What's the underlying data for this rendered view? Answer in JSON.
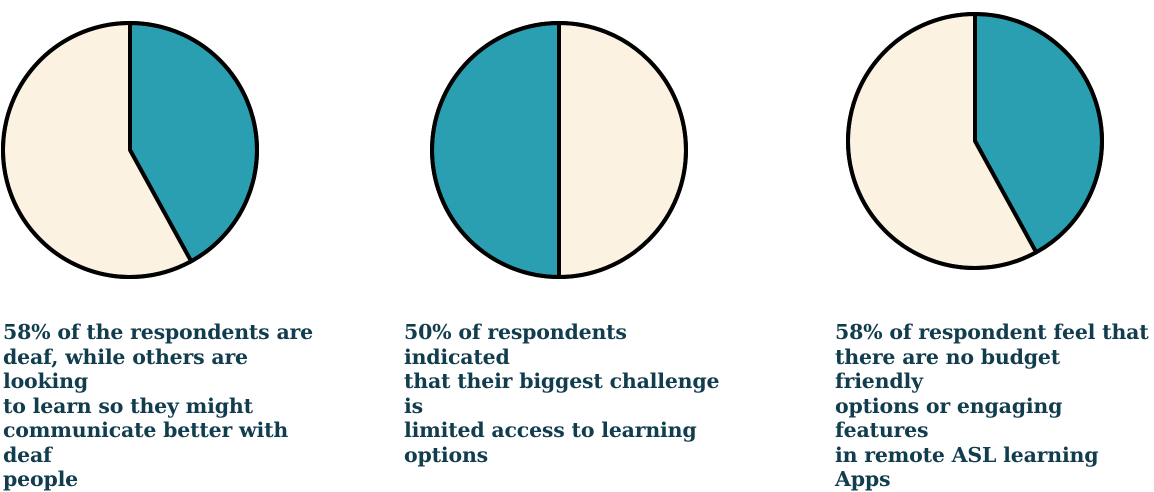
{
  "colors": {
    "teal": "#2a9fb2",
    "cream": "#fcf2e2",
    "outline": "#000000",
    "text": "#123d4e"
  },
  "chart_data": [
    {
      "type": "pie",
      "slices": [
        {
          "value": 42,
          "color": "#2a9fb2"
        },
        {
          "value": 58,
          "color": "#fcf2e2"
        }
      ],
      "caption": " 58% of the respondents are\ndeaf, while others are looking\nto learn so they might\ncommunicate better with deaf\npeople"
    },
    {
      "type": "pie",
      "slices": [
        {
          "value": 50,
          "color": "#fcf2e2"
        },
        {
          "value": 50,
          "color": "#2a9fb2"
        }
      ],
      "caption": "50% of respondents indicated\nthat their biggest challenge is\nlimited access to learning\noptions"
    },
    {
      "type": "pie",
      "slices": [
        {
          "value": 42,
          "color": "#2a9fb2"
        },
        {
          "value": 58,
          "color": "#fcf2e2"
        }
      ],
      "caption": "58% of respondent feel that\nthere are no budget friendly\noptions or engaging features\nin remote ASL learning Apps"
    }
  ]
}
